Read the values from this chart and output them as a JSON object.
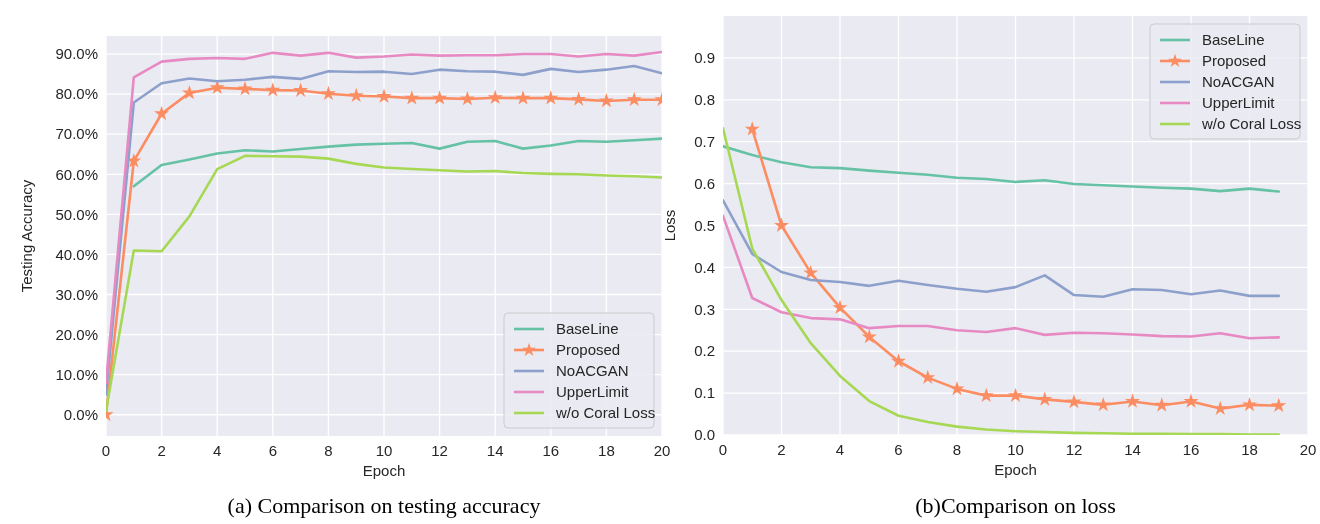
{
  "chart_data": [
    {
      "type": "line",
      "title": "(a) Comparison on testing accuracy",
      "xlabel": "Epoch",
      "ylabel": "Testing Accuracy",
      "x": [
        0,
        1,
        2,
        3,
        4,
        5,
        6,
        7,
        8,
        9,
        10,
        11,
        12,
        13,
        14,
        15,
        16,
        17,
        18,
        19,
        20
      ],
      "xlim": [
        0,
        20
      ],
      "xticks": [
        0,
        2,
        4,
        6,
        8,
        10,
        12,
        14,
        16,
        18,
        20
      ],
      "ylim": [
        -5.3,
        94.5
      ],
      "yticks": [
        {
          "value": 0,
          "label": "0.0%"
        },
        {
          "value": 10,
          "label": "10.0%"
        },
        {
          "value": 20,
          "label": "20.0%"
        },
        {
          "value": 30,
          "label": "30.0%"
        },
        {
          "value": 40,
          "label": "40.0%"
        },
        {
          "value": 50,
          "label": "50.0%"
        },
        {
          "value": 60,
          "label": "60.0%"
        },
        {
          "value": 70,
          "label": "70.0%"
        },
        {
          "value": 80,
          "label": "80.0%"
        },
        {
          "value": 90,
          "label": "90.0%"
        }
      ],
      "grid": true,
      "legend": "bottom right",
      "series": [
        {
          "name": "BaseLine",
          "color": "#66c2a5",
          "values": [
            null,
            57,
            62.3,
            63.7,
            65.2,
            66,
            65.7,
            66.3,
            66.9,
            67.4,
            67.6,
            67.8,
            66.4,
            68.1,
            68.3,
            66.4,
            67.2,
            68.3,
            68.1,
            68.5,
            68.9
          ]
        },
        {
          "name": "Proposed",
          "color": "#fc8d62",
          "marker": "star",
          "values": [
            0,
            63.3,
            75.1,
            80.3,
            81.6,
            81.3,
            81,
            80.9,
            80.1,
            79.6,
            79.4,
            79,
            79,
            78.8,
            79.1,
            79,
            79,
            78.7,
            78.3,
            78.6,
            78.6
          ]
        },
        {
          "name": "NoACGAN",
          "color": "#8da0cb",
          "values": [
            5,
            77.9,
            82.7,
            83.9,
            83.2,
            83.6,
            84.3,
            83.8,
            85.7,
            85.5,
            85.6,
            85,
            86.1,
            85.7,
            85.6,
            84.8,
            86.3,
            85.5,
            86.1,
            87,
            85.2
          ]
        },
        {
          "name": "UpperLimit",
          "color": "#e78ac3",
          "values": [
            8,
            84.2,
            88.1,
            88.8,
            89,
            88.8,
            90.3,
            89.6,
            90.3,
            89.1,
            89.4,
            89.9,
            89.6,
            89.7,
            89.7,
            90,
            90,
            89.4,
            90,
            89.6,
            90.5
          ]
        },
        {
          "name": "w/o Coral Loss",
          "color": "#a6d854",
          "values": [
            1,
            41,
            40.8,
            49.5,
            61.3,
            64.6,
            64.5,
            64.4,
            63.9,
            62.6,
            61.7,
            61.3,
            61,
            60.7,
            60.8,
            60.3,
            60.1,
            60,
            59.7,
            59.5,
            59.2
          ]
        }
      ]
    },
    {
      "type": "line",
      "title": "(b)Comparison on loss",
      "xlabel": "Epoch",
      "ylabel": "Loss",
      "x": [
        0,
        1,
        2,
        3,
        4,
        5,
        6,
        7,
        8,
        9,
        10,
        11,
        12,
        13,
        14,
        15,
        16,
        17,
        18,
        19
      ],
      "xlim": [
        0,
        20
      ],
      "xticks": [
        0,
        2,
        4,
        6,
        8,
        10,
        12,
        14,
        16,
        18,
        20
      ],
      "ylim": [
        0,
        1.0
      ],
      "yticks": [
        {
          "value": 0,
          "label": "0.0"
        },
        0.1,
        0.2,
        0.3,
        0.4,
        0.5,
        0.6,
        0.7,
        0.8,
        0.9
      ],
      "grid": true,
      "legend": "top right",
      "series": [
        {
          "name": "BaseLine",
          "color": "#66c2a5",
          "values": [
            0.689,
            0.668,
            0.651,
            0.639,
            0.637,
            0.631,
            0.626,
            0.621,
            0.614,
            0.611,
            0.604,
            0.608,
            0.599,
            0.596,
            0.593,
            0.59,
            0.588,
            0.582,
            0.588,
            0.581
          ]
        },
        {
          "name": "Proposed",
          "color": "#fc8d62",
          "marker": "star",
          "values": [
            null,
            0.73,
            0.5,
            0.387,
            0.304,
            0.234,
            0.176,
            0.137,
            0.11,
            0.094,
            0.094,
            0.085,
            0.079,
            0.072,
            0.08,
            0.071,
            0.08,
            0.063,
            0.072,
            0.07
          ]
        },
        {
          "name": "NoACGAN",
          "color": "#8da0cb",
          "values": [
            0.56,
            0.432,
            0.389,
            0.37,
            0.365,
            0.356,
            0.368,
            0.358,
            0.349,
            0.342,
            0.353,
            0.381,
            0.334,
            0.33,
            0.348,
            0.346,
            0.336,
            0.345,
            0.332,
            0.332
          ]
        },
        {
          "name": "UpperLimit",
          "color": "#e78ac3",
          "values": [
            0.523,
            0.327,
            0.293,
            0.279,
            0.276,
            0.255,
            0.26,
            0.26,
            0.25,
            0.246,
            0.255,
            0.239,
            0.244,
            0.243,
            0.24,
            0.236,
            0.235,
            0.243,
            0.231,
            0.233
          ]
        },
        {
          "name": "w/o Coral Loss",
          "color": "#a6d854",
          "values": [
            0.732,
            0.445,
            0.322,
            0.219,
            0.141,
            0.081,
            0.046,
            0.031,
            0.02,
            0.013,
            0.009,
            0.007,
            0.005,
            0.004,
            0.003,
            0.003,
            0.002,
            0.002,
            0.001,
            0.001
          ]
        }
      ]
    }
  ]
}
